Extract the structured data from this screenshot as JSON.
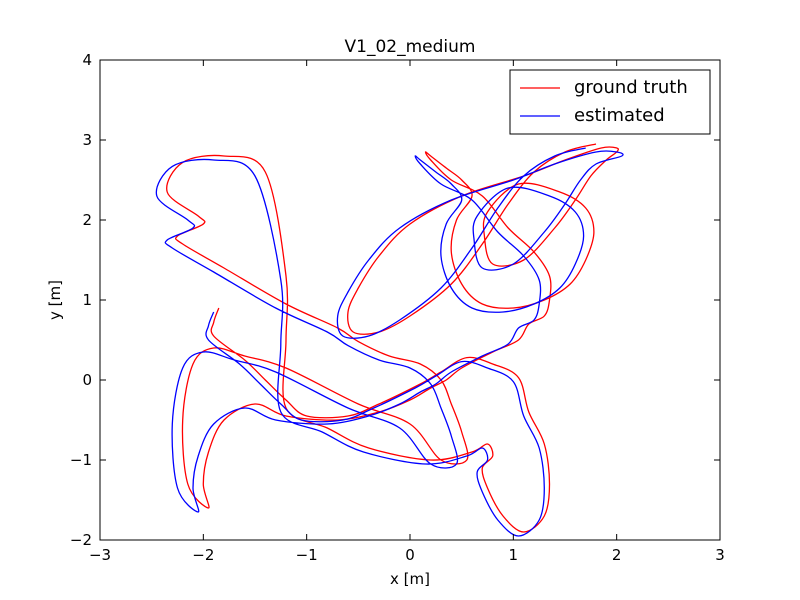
{
  "chart_data": {
    "type": "line",
    "title": "V1_02_medium",
    "xlabel": "x [m]",
    "ylabel": "y [m]",
    "xlim": [
      -3,
      3
    ],
    "ylim": [
      -2,
      4
    ],
    "xticks": [
      -3,
      -2,
      -1,
      0,
      1,
      2,
      3
    ],
    "yticks": [
      -2,
      -1,
      0,
      1,
      2,
      3,
      4
    ],
    "xtick_labels": [
      "−3",
      "−2",
      "−1",
      "0",
      "1",
      "2",
      "3"
    ],
    "ytick_labels": [
      "−2",
      "−1",
      "0",
      "1",
      "2",
      "3",
      "4"
    ],
    "grid": false,
    "legend_position": "top-right",
    "series": [
      {
        "name": "ground truth",
        "color": "#ff0000",
        "x": [
          -1.85,
          -1.9,
          -1.9,
          -1.6,
          -1.4,
          -1.2,
          -1.0,
          -0.6,
          -0.3,
          0.1,
          0.3,
          0.55,
          0.8,
          1.05,
          1.15,
          1.3,
          1.35,
          1.3,
          1.1,
          0.9,
          0.75,
          0.7,
          0.8,
          0.75,
          0.6,
          0.2,
          -0.4,
          -0.8,
          -1.2,
          -1.2,
          -1.2,
          -1.4,
          -1.8,
          -2.2,
          -2.35,
          -2.05,
          -2.0,
          -2.25,
          -2.2,
          -1.8,
          -1.2,
          -0.7,
          -0.5,
          -0.2,
          0.1,
          0.3,
          0.4,
          0.5,
          0.55,
          0.3,
          0.0,
          -0.5,
          -1.2,
          -1.6,
          -1.9,
          -2.1,
          -2.2,
          -2.15,
          -1.95,
          -2.0,
          -1.95,
          -1.8,
          -1.5,
          -1.2,
          -0.7,
          -0.3,
          0.0,
          0.2,
          0.35,
          0.5,
          0.8,
          1.05,
          1.15,
          1.3,
          1.35,
          1.35,
          1.2,
          0.95,
          0.7,
          0.4,
          0.2,
          0.15,
          0.2,
          0.35,
          0.5,
          0.6,
          0.45,
          0.4,
          0.5,
          0.7,
          1.0,
          1.3,
          1.55,
          1.7,
          1.78,
          1.7,
          1.45,
          1.05,
          0.75,
          0.72,
          0.8,
          1.1,
          1.4,
          1.6,
          1.75,
          1.9,
          2.0,
          2.0,
          1.85,
          1.5,
          1.1,
          0.5,
          0.0,
          -0.3,
          -0.5,
          -0.6,
          -0.55,
          -0.3,
          0.0,
          0.4,
          0.7,
          0.95,
          1.2,
          1.5,
          1.8
        ],
        "y": [
          0.9,
          0.72,
          0.55,
          0.25,
          0.0,
          -0.25,
          -0.45,
          -0.45,
          -0.3,
          -0.05,
          0.1,
          0.28,
          0.2,
          0.03,
          -0.4,
          -0.8,
          -1.3,
          -1.7,
          -1.9,
          -1.7,
          -1.35,
          -1.1,
          -0.95,
          -0.8,
          -0.9,
          -1.0,
          -0.85,
          -0.6,
          -0.35,
          0.5,
          1.3,
          2.6,
          2.8,
          2.72,
          2.35,
          2.05,
          1.95,
          1.8,
          1.7,
          1.4,
          0.95,
          0.65,
          0.48,
          0.3,
          0.2,
          0.0,
          -0.3,
          -0.65,
          -1.0,
          -1.0,
          -0.55,
          -0.3,
          0.15,
          0.3,
          0.4,
          0.2,
          -0.5,
          -1.3,
          -1.6,
          -1.3,
          -0.9,
          -0.5,
          -0.3,
          -0.45,
          -0.5,
          -0.4,
          -0.25,
          -0.1,
          0.0,
          0.15,
          0.35,
          0.5,
          0.7,
          0.8,
          1.0,
          1.3,
          1.6,
          1.9,
          2.3,
          2.5,
          2.75,
          2.85,
          2.8,
          2.65,
          2.5,
          2.3,
          2.0,
          1.6,
          1.2,
          0.95,
          0.9,
          1.0,
          1.2,
          1.5,
          1.85,
          2.15,
          2.35,
          2.45,
          2.1,
          1.8,
          1.45,
          1.5,
          1.9,
          2.25,
          2.55,
          2.75,
          2.85,
          2.9,
          2.9,
          2.75,
          2.55,
          2.3,
          1.95,
          1.55,
          1.15,
          0.85,
          0.6,
          0.6,
          0.8,
          1.2,
          1.7,
          2.2,
          2.6,
          2.85,
          2.95
        ]
      },
      {
        "name": "estimated",
        "color": "#0000ff",
        "x": [
          -1.9,
          -1.95,
          -1.95,
          -1.65,
          -1.45,
          -1.25,
          -1.05,
          -0.65,
          -0.35,
          0.05,
          0.25,
          0.5,
          0.75,
          1.0,
          1.1,
          1.25,
          1.3,
          1.25,
          1.05,
          0.85,
          0.7,
          0.65,
          0.75,
          0.7,
          0.55,
          0.15,
          -0.45,
          -0.85,
          -1.25,
          -1.25,
          -1.25,
          -1.5,
          -1.9,
          -2.3,
          -2.45,
          -2.15,
          -2.1,
          -2.35,
          -2.3,
          -1.9,
          -1.3,
          -0.8,
          -0.6,
          -0.3,
          0.0,
          0.2,
          0.3,
          0.4,
          0.45,
          0.2,
          -0.1,
          -0.6,
          -1.3,
          -1.7,
          -2.0,
          -2.2,
          -2.3,
          -2.25,
          -2.05,
          -2.1,
          -2.05,
          -1.9,
          -1.6,
          -1.3,
          -0.8,
          -0.4,
          -0.1,
          0.1,
          0.25,
          0.4,
          0.7,
          0.95,
          1.05,
          1.2,
          1.25,
          1.25,
          1.1,
          0.85,
          0.6,
          0.3,
          0.1,
          0.05,
          0.1,
          0.25,
          0.4,
          0.5,
          0.35,
          0.3,
          0.4,
          0.6,
          0.9,
          1.2,
          1.45,
          1.6,
          1.68,
          1.6,
          1.35,
          0.95,
          0.65,
          0.62,
          0.7,
          1.0,
          1.3,
          1.5,
          1.65,
          1.8,
          2.05,
          2.0,
          1.8,
          1.4,
          1.0,
          0.4,
          -0.1,
          -0.4,
          -0.6,
          -0.7,
          -0.65,
          -0.4,
          -0.1,
          0.3,
          0.6,
          0.85,
          1.1,
          1.4,
          1.7
        ],
        "y": [
          0.85,
          0.68,
          0.5,
          0.2,
          -0.05,
          -0.3,
          -0.5,
          -0.5,
          -0.35,
          -0.1,
          0.05,
          0.23,
          0.15,
          -0.02,
          -0.45,
          -0.85,
          -1.35,
          -1.75,
          -1.95,
          -1.75,
          -1.4,
          -1.15,
          -1.0,
          -0.85,
          -0.95,
          -1.05,
          -0.9,
          -0.65,
          -0.4,
          0.45,
          1.25,
          2.55,
          2.75,
          2.67,
          2.3,
          2.0,
          1.9,
          1.75,
          1.65,
          1.35,
          0.9,
          0.6,
          0.43,
          0.25,
          0.15,
          -0.05,
          -0.35,
          -0.7,
          -1.05,
          -1.05,
          -0.6,
          -0.35,
          0.1,
          0.25,
          0.35,
          0.15,
          -0.55,
          -1.35,
          -1.65,
          -1.35,
          -0.95,
          -0.55,
          -0.35,
          -0.5,
          -0.55,
          -0.45,
          -0.3,
          -0.15,
          -0.05,
          0.1,
          0.3,
          0.45,
          0.65,
          0.75,
          0.95,
          1.25,
          1.55,
          1.85,
          2.25,
          2.45,
          2.7,
          2.8,
          2.75,
          2.6,
          2.45,
          2.25,
          1.95,
          1.55,
          1.15,
          0.9,
          0.85,
          0.95,
          1.15,
          1.45,
          1.8,
          2.1,
          2.3,
          2.4,
          2.05,
          1.75,
          1.4,
          1.45,
          1.85,
          2.2,
          2.5,
          2.7,
          2.8,
          2.85,
          2.85,
          2.7,
          2.5,
          2.25,
          1.9,
          1.5,
          1.1,
          0.8,
          0.55,
          0.55,
          0.75,
          1.15,
          1.65,
          2.15,
          2.55,
          2.8,
          2.9
        ]
      }
    ]
  }
}
